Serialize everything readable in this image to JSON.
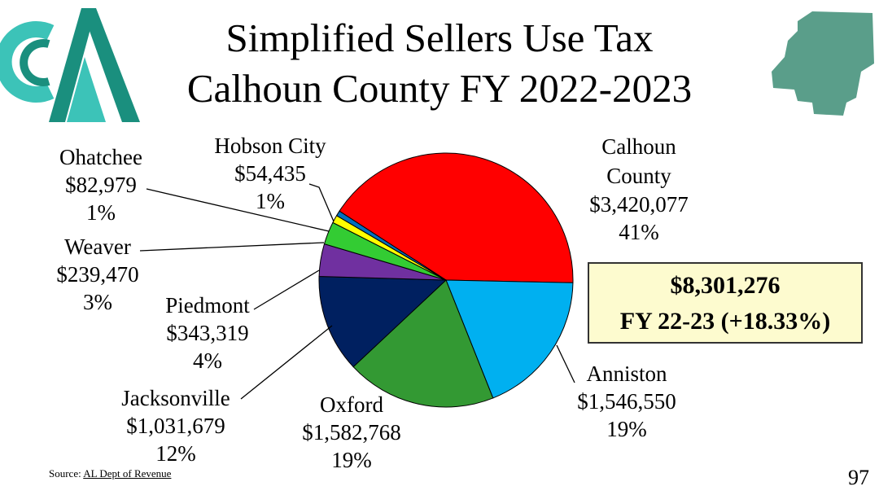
{
  "slide": {
    "title_line1": "Simplified Sellers Use Tax",
    "title_line2": "Calhoun County FY 2022-2023",
    "total_amount": "$8,301,276",
    "total_note": "FY 22-23 (+18.33%)",
    "source_prefix": "Source: ",
    "source_link": "AL Dept of Revenue",
    "page_number": "97"
  },
  "chart_data": {
    "type": "pie",
    "title": "Simplified Sellers Use Tax Calhoun County FY 2022-2023",
    "slices": [
      {
        "name": "Calhoun County",
        "value": 3420077,
        "value_label": "$3,420,077",
        "percent_label": "41%",
        "color": "#ff0000"
      },
      {
        "name": "Anniston",
        "value": 1546550,
        "value_label": "$1,546,550",
        "percent_label": "19%",
        "color": "#00b0f0"
      },
      {
        "name": "Oxford",
        "value": 1582768,
        "value_label": "$1,582,768",
        "percent_label": "19%",
        "color": "#339933"
      },
      {
        "name": "Jacksonville",
        "value": 1031679,
        "value_label": "$1,031,679",
        "percent_label": "12%",
        "color": "#002060"
      },
      {
        "name": "Piedmont",
        "value": 343319,
        "value_label": "$343,319",
        "percent_label": "4%",
        "color": "#7030a0"
      },
      {
        "name": "Weaver",
        "value": 239470,
        "value_label": "$239,470",
        "percent_label": "3%",
        "color": "#33cc33"
      },
      {
        "name": "Ohatchee",
        "value": 82979,
        "value_label": "$82,979",
        "percent_label": "1%",
        "color": "#ffff00"
      },
      {
        "name": "Hobson City",
        "value": 54435,
        "value_label": "$54,435",
        "percent_label": "1%",
        "color": "#0070c0"
      }
    ]
  }
}
